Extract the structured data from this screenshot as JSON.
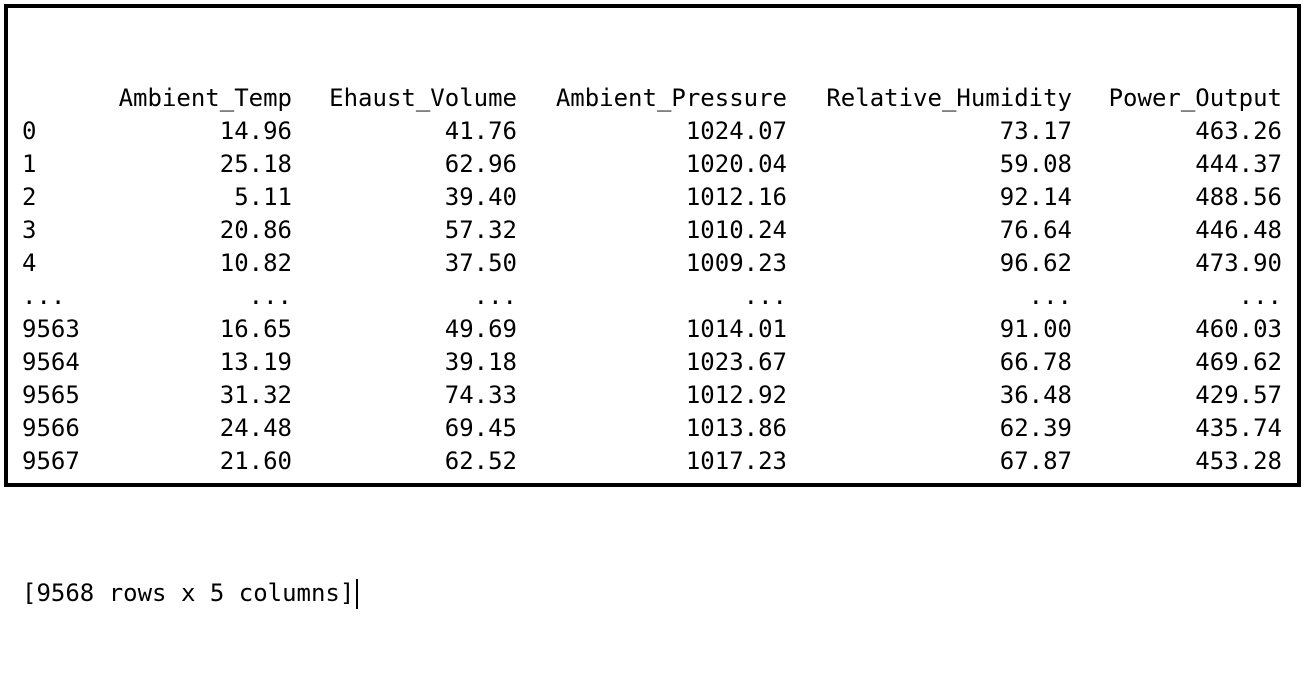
{
  "dataframe": {
    "columns": [
      "Ambient_Temp",
      "Ehaust_Volume",
      "Ambient_Pressure",
      "Relative_Humidity",
      "Power_Output"
    ],
    "rows": [
      {
        "index": "0",
        "values": [
          "14.96",
          "41.76",
          "1024.07",
          "73.17",
          "463.26"
        ]
      },
      {
        "index": "1",
        "values": [
          "25.18",
          "62.96",
          "1020.04",
          "59.08",
          "444.37"
        ]
      },
      {
        "index": "2",
        "values": [
          "5.11",
          "39.40",
          "1012.16",
          "92.14",
          "488.56"
        ]
      },
      {
        "index": "3",
        "values": [
          "20.86",
          "57.32",
          "1010.24",
          "76.64",
          "446.48"
        ]
      },
      {
        "index": "4",
        "values": [
          "10.82",
          "37.50",
          "1009.23",
          "96.62",
          "473.90"
        ]
      },
      {
        "index": "...",
        "values": [
          "...",
          "...",
          "...",
          "...",
          "..."
        ]
      },
      {
        "index": "9563",
        "values": [
          "16.65",
          "49.69",
          "1014.01",
          "91.00",
          "460.03"
        ]
      },
      {
        "index": "9564",
        "values": [
          "13.19",
          "39.18",
          "1023.67",
          "66.78",
          "469.62"
        ]
      },
      {
        "index": "9565",
        "values": [
          "31.32",
          "74.33",
          "1012.92",
          "36.48",
          "429.57"
        ]
      },
      {
        "index": "9566",
        "values": [
          "24.48",
          "69.45",
          "1013.86",
          "62.39",
          "435.74"
        ]
      },
      {
        "index": "9567",
        "values": [
          "21.60",
          "62.52",
          "1017.23",
          "67.87",
          "453.28"
        ]
      }
    ],
    "summary": "[9568 rows x 5 columns]"
  }
}
